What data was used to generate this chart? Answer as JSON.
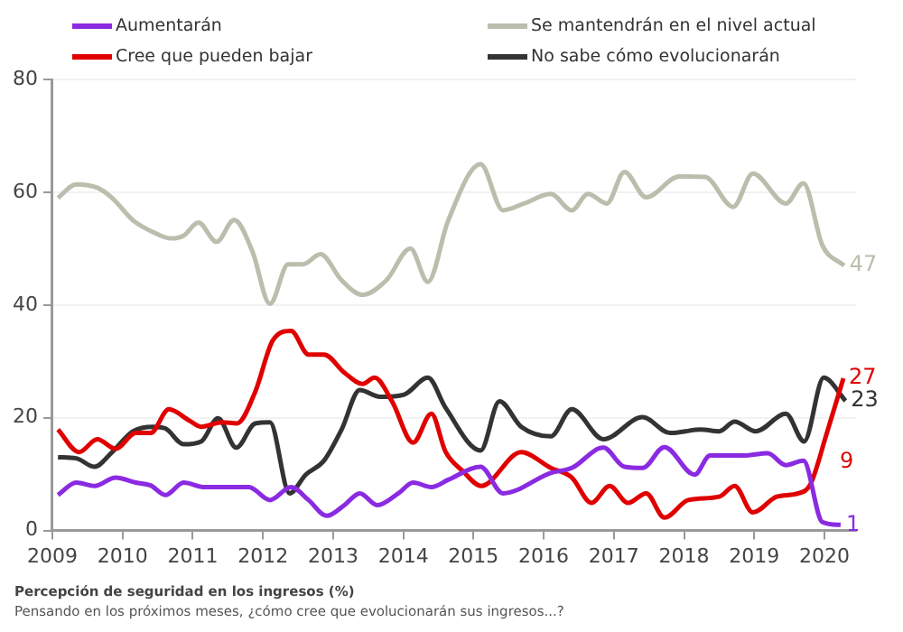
{
  "chart_data": {
    "type": "line",
    "title": "Percepción de seguridad en los ingresos (%)",
    "subtitle": "Pensando en los próximos meses, ¿cómo cree que evolucionarán sus ingresos...?",
    "xlim": [
      2009,
      2020.45
    ],
    "xticks": [
      2009,
      2010,
      2011,
      2012,
      2013,
      2014,
      2015,
      2016,
      2017,
      2018,
      2019,
      2020
    ],
    "ylim": [
      0,
      80
    ],
    "yticks": [
      0,
      20,
      40,
      60,
      80
    ],
    "grid": "y",
    "legend": "top",
    "marker": "none",
    "line_style": "solid",
    "series": [
      {
        "name": "Aumentarán",
        "color": "#8a2be2",
        "x": [
          2009.08,
          2009.34,
          2009.6,
          2009.9,
          2010.19,
          2010.4,
          2010.61,
          2010.87,
          2011.17,
          2011.5,
          2011.8,
          2012.1,
          2012.4,
          2012.65,
          2012.91,
          2013.16,
          2013.38,
          2013.63,
          2013.93,
          2014.14,
          2014.4,
          2014.64,
          2015.1,
          2015.42,
          2016.1,
          2016.4,
          2016.85,
          2017.15,
          2017.41,
          2017.72,
          2018.15,
          2018.37,
          2018.85,
          2019.19,
          2019.45,
          2019.7,
          2019.97,
          2020.23
        ],
        "values": [
          6.3,
          8.5,
          7.9,
          9.4,
          8.5,
          8,
          6.3,
          8.5,
          7.7,
          7.7,
          7.7,
          5.4,
          7.7,
          5.4,
          2.6,
          4.5,
          6.6,
          4.5,
          6.6,
          8.5,
          7.7,
          9,
          11.3,
          6.6,
          10.2,
          11.1,
          14.7,
          11.3,
          11.1,
          14.8,
          9.9,
          13.3,
          13.3,
          13.7,
          11.6,
          12.4,
          1.5,
          1
        ],
        "value_labels": [
          null,
          null,
          null,
          null,
          null,
          null,
          null,
          null,
          null,
          null,
          null,
          null,
          null,
          null,
          null,
          null,
          null,
          null,
          null,
          null,
          null,
          null,
          null,
          null,
          null,
          null,
          null,
          null,
          null,
          null,
          null,
          null,
          null,
          null,
          null,
          null,
          null,
          "1"
        ]
      },
      {
        "name": "Se mantendrán en el nivel actual",
        "color": "#bdbdad",
        "x": [
          2009.08,
          2009.34,
          2009.64,
          2009.85,
          2010.15,
          2010.44,
          2010.7,
          2010.87,
          2011.08,
          2011.34,
          2011.59,
          2011.85,
          2012.1,
          2012.36,
          2012.57,
          2012.82,
          2013.12,
          2013.42,
          2013.76,
          2014.1,
          2014.35,
          2014.64,
          2015.1,
          2015.42,
          2015.72,
          2016.1,
          2016.4,
          2016.63,
          2016.9,
          2017.15,
          2017.46,
          2017.93,
          2018.3,
          2018.7,
          2018.98,
          2019.45,
          2019.7,
          2019.97,
          2020.28
        ],
        "values": [
          59,
          61.4,
          60.8,
          59,
          55,
          52.9,
          51.8,
          52.3,
          54.6,
          51.2,
          55.1,
          49.5,
          40.2,
          47.2,
          47.2,
          49,
          44.4,
          41.8,
          44.4,
          50,
          44.1,
          55,
          65,
          56.8,
          58,
          59.7,
          56.8,
          59.7,
          58,
          63.6,
          59.1,
          62.8,
          62.7,
          57.4,
          63.3,
          58,
          61.6,
          50.6,
          47
        ],
        "value_labels": [
          null,
          null,
          null,
          null,
          null,
          null,
          null,
          null,
          null,
          null,
          null,
          null,
          null,
          null,
          null,
          null,
          null,
          null,
          null,
          null,
          null,
          null,
          null,
          null,
          null,
          null,
          null,
          null,
          null,
          null,
          null,
          null,
          null,
          null,
          null,
          null,
          null,
          null,
          "47"
        ]
      },
      {
        "name": "Cree que pueden bajar",
        "color": "#e00000",
        "x": [
          2009.08,
          2009.38,
          2009.64,
          2009.9,
          2010.19,
          2010.4,
          2010.66,
          2010.95,
          2011.12,
          2011.42,
          2011.63,
          2011.89,
          2012.14,
          2012.4,
          2012.65,
          2012.87,
          2013.16,
          2013.42,
          2013.59,
          2013.84,
          2014.14,
          2014.4,
          2014.6,
          2014.85,
          2015.11,
          2015.68,
          2016.1,
          2016.4,
          2016.68,
          2016.94,
          2017.2,
          2017.46,
          2017.72,
          2018.06,
          2018.5,
          2018.72,
          2018.98,
          2019.32,
          2019.63,
          2019.8,
          2020.02,
          2020.27
        ],
        "values": [
          17.9,
          13.9,
          16.2,
          14.5,
          17.3,
          17.3,
          21.5,
          19.5,
          18.4,
          19.2,
          19,
          24.6,
          33.7,
          35.4,
          31.2,
          31.2,
          28,
          26,
          27.1,
          22.9,
          15.6,
          20.7,
          14,
          10.5,
          7.9,
          13.9,
          11.1,
          9.4,
          4.9,
          7.9,
          4.9,
          6.6,
          2.3,
          5.4,
          6,
          7.9,
          3.2,
          6,
          6.6,
          8.2,
          16.7,
          27
        ],
        "value_labels": [
          null,
          null,
          null,
          null,
          null,
          null,
          null,
          null,
          null,
          null,
          null,
          null,
          null,
          null,
          null,
          null,
          null,
          null,
          null,
          null,
          null,
          null,
          null,
          null,
          null,
          null,
          null,
          null,
          null,
          null,
          null,
          null,
          null,
          null,
          null,
          null,
          null,
          null,
          null,
          null,
          null,
          "27"
        ]
      },
      {
        "name": "No sabe cómo evolucionarán",
        "color": "#333333",
        "x": [
          2009.08,
          2009.34,
          2009.6,
          2009.85,
          2010.15,
          2010.44,
          2010.61,
          2010.87,
          2011.12,
          2011.36,
          2011.62,
          2011.89,
          2012.1,
          2012.38,
          2012.61,
          2012.87,
          2013.12,
          2013.38,
          2013.67,
          2014.01,
          2014.35,
          2014.6,
          2015.1,
          2015.37,
          2015.68,
          2016.1,
          2016.4,
          2016.85,
          2017.41,
          2017.8,
          2018.24,
          2018.5,
          2018.72,
          2019.02,
          2019.45,
          2019.71,
          2019.99,
          2020.3
        ],
        "values": [
          13,
          12.8,
          11.3,
          13.9,
          17.6,
          18.4,
          18.1,
          15.3,
          15.8,
          19.9,
          14.7,
          19,
          19.2,
          6.6,
          9.9,
          12.4,
          17.9,
          24.9,
          23.7,
          24.1,
          27.1,
          21.8,
          14.2,
          22.9,
          18.4,
          16.7,
          21.5,
          16.2,
          20.1,
          17.3,
          17.9,
          17.6,
          19.3,
          17.6,
          20.7,
          15.8,
          27.1,
          23
        ],
        "value_labels": [
          null,
          null,
          null,
          null,
          null,
          null,
          null,
          null,
          null,
          null,
          null,
          null,
          null,
          null,
          null,
          null,
          null,
          null,
          null,
          null,
          null,
          null,
          null,
          null,
          null,
          null,
          null,
          null,
          null,
          null,
          null,
          null,
          null,
          null,
          null,
          null,
          null,
          "23"
        ]
      }
    ],
    "annotations": [
      "9"
    ]
  }
}
